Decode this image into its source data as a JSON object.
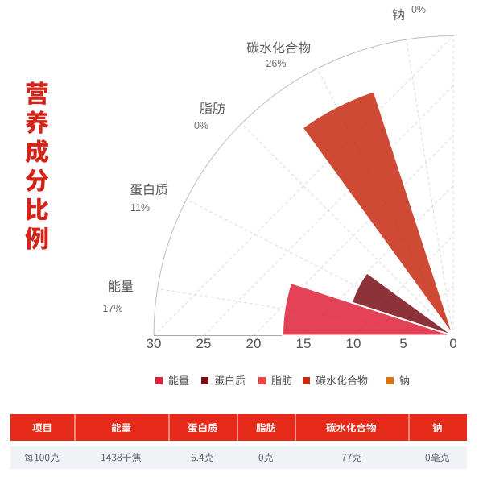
{
  "page": {
    "background": "#ffffff"
  },
  "title": {
    "text": "营养成分比例"
  },
  "chart_data": {
    "type": "bar",
    "coordinate": "polar",
    "title": "营养成分比例",
    "categories": [
      "能量",
      "蛋白质",
      "脂肪",
      "碳水化合物",
      "钠"
    ],
    "values": [
      17,
      11,
      0,
      26,
      0
    ],
    "percent_labels": [
      "17%",
      "11%",
      "0%",
      "26%",
      "0%"
    ],
    "values_exact": [
      17.1,
      10.7,
      0,
      25.7,
      0
    ],
    "unit": "%NRV",
    "colors": [
      "#df2139",
      "#7a0e17",
      "#f4433f",
      "#c62a12",
      "#de7210"
    ],
    "bar_opacity": 0.85,
    "angular_span_deg": 90,
    "radial_axis": {
      "min": 0,
      "max": 30,
      "ticks": [
        "30",
        "25",
        "20",
        "15",
        "10",
        "5",
        "0"
      ]
    },
    "legend": {
      "position": "bottom",
      "items": [
        "能量",
        "蛋白质",
        "脂肪",
        "碳水化合物",
        "钠"
      ]
    },
    "grid": {
      "dashed": true
    }
  },
  "table": {
    "headers": [
      "项目",
      "能量",
      "蛋白质",
      "脂肪",
      "碳水化合物",
      "钠"
    ],
    "rows": [
      [
        "每100克",
        "1438千焦",
        "6.4克",
        "0克",
        "77克",
        "0毫克"
      ]
    ],
    "header_bg": "#e52a1a",
    "row_bg": "#f1f2f5"
  }
}
